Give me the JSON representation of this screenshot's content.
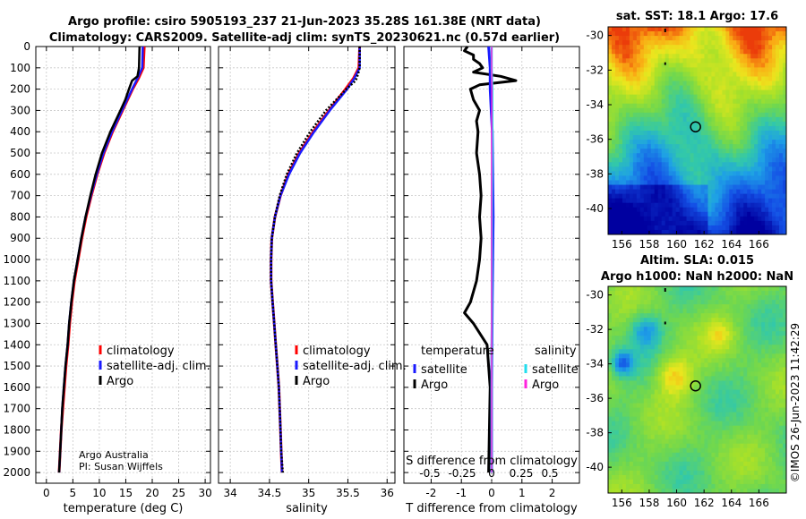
{
  "title": {
    "line1": "Argo profile: csiro 5905193_237 21-Jun-2023 35.28S 161.38E (NRT data)",
    "line2": "Climatology: CARS2009. Satellite-adj clim: synTS_20230621.nc (0.57d earlier)"
  },
  "credit": {
    "org": "Argo Australia",
    "pi": "PI: Susan Wijffels"
  },
  "stamp": "©IMOS 26-Jun-2023 11:42:29",
  "colors": {
    "climatology": "#ff0000",
    "satellite_adj": "#1a1aff",
    "argo": "#000000",
    "sal_satellite": "#22ddee",
    "sal_argo": "#ff22dd"
  },
  "chart_data": [
    {
      "type": "line",
      "id": "temperature",
      "xlabel": "temperature (deg C)",
      "ylabel": "",
      "xlim": [
        -2,
        31
      ],
      "ylim": [
        2050,
        0
      ],
      "xticks": [
        0,
        5,
        10,
        15,
        20,
        25,
        30
      ],
      "yticks": [
        0,
        100,
        200,
        300,
        400,
        500,
        600,
        700,
        800,
        900,
        1000,
        1100,
        1200,
        1300,
        1400,
        1500,
        1600,
        1700,
        1800,
        1900,
        2000
      ],
      "legend": [
        "climatology",
        "satellite-adj. clim.",
        "Argo"
      ],
      "series": [
        {
          "name": "climatology",
          "depth": [
            0,
            100,
            150,
            200,
            300,
            400,
            500,
            600,
            700,
            800,
            900,
            1000,
            1100,
            1200,
            1300,
            1400,
            1500,
            1600,
            1700,
            1800,
            1900,
            2000
          ],
          "values": [
            18.5,
            18.3,
            17.4,
            16.3,
            14.4,
            12.5,
            10.9,
            9.6,
            8.5,
            7.5,
            6.7,
            6.0,
            5.3,
            4.8,
            4.4,
            4.1,
            3.7,
            3.4,
            3.1,
            2.8,
            2.6,
            2.4
          ]
        },
        {
          "name": "satellite-adj. clim.",
          "depth": [
            0,
            100,
            150,
            200,
            300,
            400,
            500,
            600,
            700,
            800,
            900,
            1000,
            1100,
            1200,
            1300,
            1400,
            1500,
            1600,
            1700,
            1800,
            1900,
            2000
          ],
          "values": [
            18.2,
            18.1,
            17.2,
            16.2,
            14.3,
            12.4,
            10.8,
            9.5,
            8.4,
            7.4,
            6.6,
            5.9,
            5.2,
            4.7,
            4.3,
            4.0,
            3.6,
            3.3,
            3.0,
            2.8,
            2.6,
            2.4
          ]
        },
        {
          "name": "Argo",
          "depth": [
            0,
            100,
            140,
            160,
            200,
            250,
            300,
            400,
            500,
            600,
            700,
            800,
            900,
            1000,
            1100,
            1200,
            1300,
            1400,
            1500,
            1600,
            1700,
            1800,
            1900,
            2000
          ],
          "values": [
            17.6,
            17.5,
            17.2,
            16.2,
            15.6,
            14.9,
            14.0,
            12.1,
            10.5,
            9.3,
            8.3,
            7.4,
            6.6,
            5.9,
            5.2,
            4.7,
            4.3,
            4.0,
            3.6,
            3.3,
            3.0,
            2.8,
            2.6,
            2.4
          ]
        }
      ]
    },
    {
      "type": "line",
      "id": "salinity",
      "xlabel": "salinity",
      "xlim": [
        33.85,
        36.1
      ],
      "ylim": [
        2050,
        0
      ],
      "xticks": [
        34,
        34.5,
        35,
        35.5,
        36
      ],
      "legend": [
        "climatology",
        "satellite-adj. clim.",
        "Argo"
      ],
      "series": [
        {
          "name": "climatology",
          "depth": [
            0,
            100,
            150,
            200,
            300,
            400,
            500,
            600,
            700,
            800,
            900,
            1000,
            1100,
            1200,
            1300,
            1400,
            1500,
            1600,
            1700,
            1800,
            1900,
            2000
          ],
          "values": [
            35.65,
            35.64,
            35.57,
            35.47,
            35.26,
            35.06,
            34.88,
            34.74,
            34.64,
            34.57,
            34.53,
            34.52,
            34.52,
            34.54,
            34.56,
            34.58,
            34.6,
            34.62,
            34.63,
            34.64,
            34.65,
            34.66
          ]
        },
        {
          "name": "satellite-adj. clim.",
          "depth": [
            0,
            100,
            150,
            200,
            300,
            400,
            500,
            600,
            700,
            800,
            900,
            1000,
            1100,
            1200,
            1300,
            1400,
            1500,
            1600,
            1700,
            1800,
            1900,
            2000
          ],
          "values": [
            35.65,
            35.65,
            35.58,
            35.49,
            35.27,
            35.07,
            34.89,
            34.75,
            34.64,
            34.57,
            34.53,
            34.52,
            34.52,
            34.54,
            34.56,
            34.58,
            34.6,
            34.62,
            34.63,
            34.64,
            34.65,
            34.66
          ]
        },
        {
          "name": "Argo",
          "depth": [
            0,
            100,
            130,
            160,
            200,
            300,
            400,
            500,
            600,
            700,
            800,
            900,
            1000,
            1100,
            1200,
            1300,
            1400,
            1500,
            1600,
            1700,
            1800,
            1900,
            2000
          ],
          "values": [
            35.65,
            35.65,
            35.63,
            35.6,
            35.48,
            35.22,
            35.02,
            34.85,
            34.72,
            34.63,
            34.57,
            34.53,
            34.52,
            34.52,
            34.54,
            34.56,
            34.58,
            34.6,
            34.62,
            34.63,
            34.64,
            34.65,
            34.67
          ]
        }
      ]
    },
    {
      "type": "line",
      "id": "difference",
      "xlabel": "T difference from climatology",
      "top_label": "S difference from climatology",
      "xlim": [
        -2.9,
        2.9
      ],
      "ylim": [
        2050,
        0
      ],
      "xticks": [
        -2,
        -1,
        0,
        1,
        2
      ],
      "sal_ticks": [
        "-0.5",
        "-0.25",
        "0",
        "0.25",
        "0.5"
      ],
      "legend": {
        "temperature_header": "temperature",
        "salinity_header": "salinity",
        "entries": [
          "satellite",
          "Argo",
          "satellite",
          "Argo"
        ]
      },
      "series": [
        {
          "name": "T Argo",
          "depth": [
            0,
            20,
            40,
            60,
            80,
            100,
            120,
            140,
            160,
            180,
            200,
            250,
            300,
            350,
            400,
            500,
            600,
            700,
            800,
            900,
            1000,
            1100,
            1200,
            1250,
            1300,
            1400,
            1600,
            2000
          ],
          "values": [
            -0.8,
            -0.9,
            -0.6,
            -0.6,
            -0.4,
            -0.3,
            -0.6,
            0.3,
            0.8,
            -0.4,
            -0.7,
            -0.6,
            -0.4,
            -0.5,
            -0.45,
            -0.5,
            -0.4,
            -0.35,
            -0.4,
            -0.35,
            -0.4,
            -0.5,
            -0.7,
            -0.9,
            -0.6,
            -0.15,
            -0.05,
            -0.1
          ]
        },
        {
          "name": "T satellite",
          "depth": [
            0,
            100,
            200,
            400,
            800,
            1200,
            1600,
            2000
          ],
          "values": [
            -0.1,
            -0.05,
            -0.05,
            0.02,
            0.05,
            0.02,
            0.0,
            0.0
          ]
        },
        {
          "name": "S satellite",
          "depth": [
            0,
            100,
            200,
            400,
            800,
            1200,
            1600,
            2000
          ],
          "values": [
            0.0,
            0.0,
            0.02,
            0.02,
            0.01,
            0.01,
            0.0,
            0.0
          ]
        },
        {
          "name": "S Argo",
          "depth": [
            0,
            100,
            200,
            400,
            800,
            1200,
            1600,
            2000
          ],
          "values": [
            0.0,
            0.0,
            0.01,
            0.0,
            0.0,
            0.0,
            0.0,
            0.0
          ]
        }
      ]
    },
    {
      "type": "heatmap",
      "id": "sst_map",
      "title": "sat. SST: 18.1 Argo: 17.6",
      "xticks": [
        156,
        158,
        160,
        162,
        164,
        166
      ],
      "yticks": [
        -30,
        -32,
        -34,
        -36,
        -38,
        -40
      ],
      "xlim": [
        155,
        168
      ],
      "ylim": [
        -41.5,
        -29.5
      ],
      "marker": {
        "lon": 161.38,
        "lat": -35.28
      }
    },
    {
      "type": "heatmap",
      "id": "sla_map",
      "title": "Altim. SLA: 0.015",
      "subtitle": "Argo h1000: NaN h2000: NaN",
      "xticks": [
        156,
        158,
        160,
        162,
        164,
        166
      ],
      "yticks": [
        -30,
        -32,
        -34,
        -36,
        -38,
        -40
      ],
      "xlim": [
        155,
        168
      ],
      "ylim": [
        -41.5,
        -29.5
      ],
      "marker": {
        "lon": 161.38,
        "lat": -35.28
      }
    }
  ]
}
